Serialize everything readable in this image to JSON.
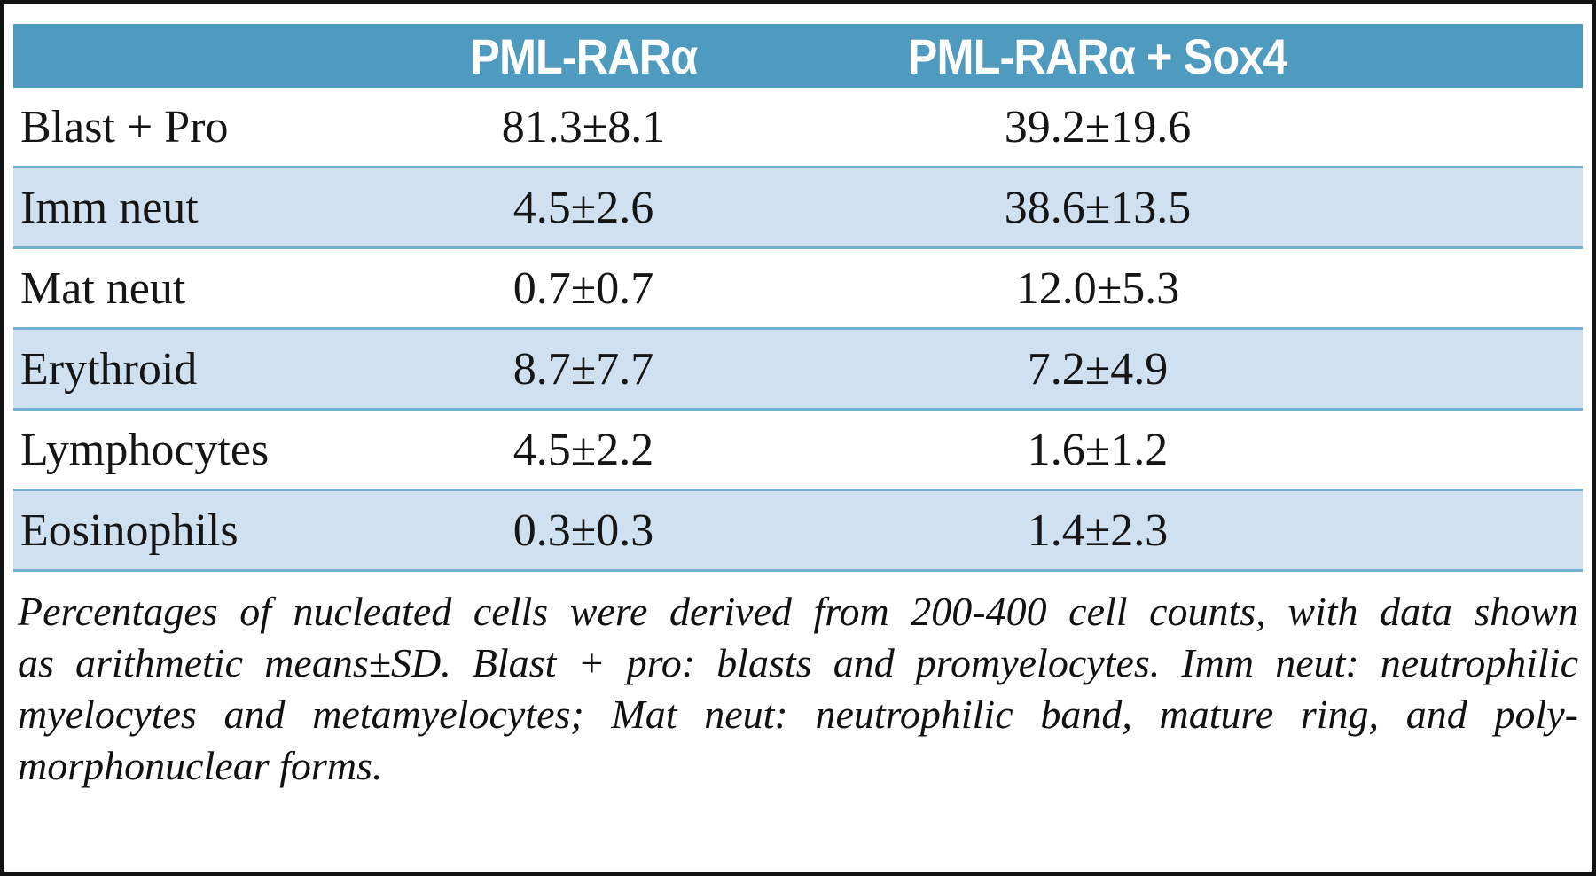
{
  "colors": {
    "header_bg": "#4e9bbf",
    "row_alt_bg": "#cfe1f1",
    "divider": "#74b0d2"
  },
  "table": {
    "columns": [
      "",
      "PML-RARα",
      "PML-RARα + Sox4"
    ],
    "rows": [
      {
        "label": "Blast + Pro",
        "pml_rara": "81.3±8.1",
        "pml_rara_sox4": "39.2±19.6"
      },
      {
        "label": "Imm neut",
        "pml_rara": "4.5±2.6",
        "pml_rara_sox4": "38.6±13.5"
      },
      {
        "label": "Mat neut",
        "pml_rara": "0.7±0.7",
        "pml_rara_sox4": "12.0±5.3"
      },
      {
        "label": "Erythroid",
        "pml_rara": "8.7±7.7",
        "pml_rara_sox4": "7.2±4.9"
      },
      {
        "label": "Lymphocytes",
        "pml_rara": "4.5±2.2",
        "pml_rara_sox4": "1.6±1.2"
      },
      {
        "label": "Eosinophils",
        "pml_rara": "0.3±0.3",
        "pml_rara_sox4": "1.4±2.3"
      }
    ]
  },
  "footnote_lines": [
    "Percentages of nucleated cells were derived from 200-400 cell counts, with data shown",
    "as arithmetic means±SD. Blast + pro: blasts and promyelocytes. Imm neut: neutrophilic",
    "myelocytes and metamyelocytes; Mat neut: neutrophilic band, mature ring, and poly-",
    "morphonuclear forms."
  ],
  "chart_data": {
    "type": "table",
    "columns": [
      "",
      "PML-RARα",
      "PML-RARα + Sox4"
    ],
    "rows": [
      [
        "Blast + Pro",
        "81.3±8.1",
        "39.2±19.6"
      ],
      [
        "Imm neut",
        "4.5±2.6",
        "38.6±13.5"
      ],
      [
        "Mat neut",
        "0.7±0.7",
        "12.0±5.3"
      ],
      [
        "Erythroid",
        "8.7±7.7",
        "7.2±4.9"
      ],
      [
        "Lymphocytes",
        "4.5±2.2",
        "1.6±1.2"
      ],
      [
        "Eosinophils",
        "0.3±0.3",
        "1.4±2.3"
      ]
    ],
    "footnote": "Percentages of nucleated cells were derived from 200-400 cell counts, with data shown as arithmetic means±SD. Blast + pro: blasts and promyelocytes. Imm neut: neutrophilic myelocytes and metamyelocytes; Mat neut: neutrophilic band, mature ring, and polymorphonuclear forms."
  }
}
